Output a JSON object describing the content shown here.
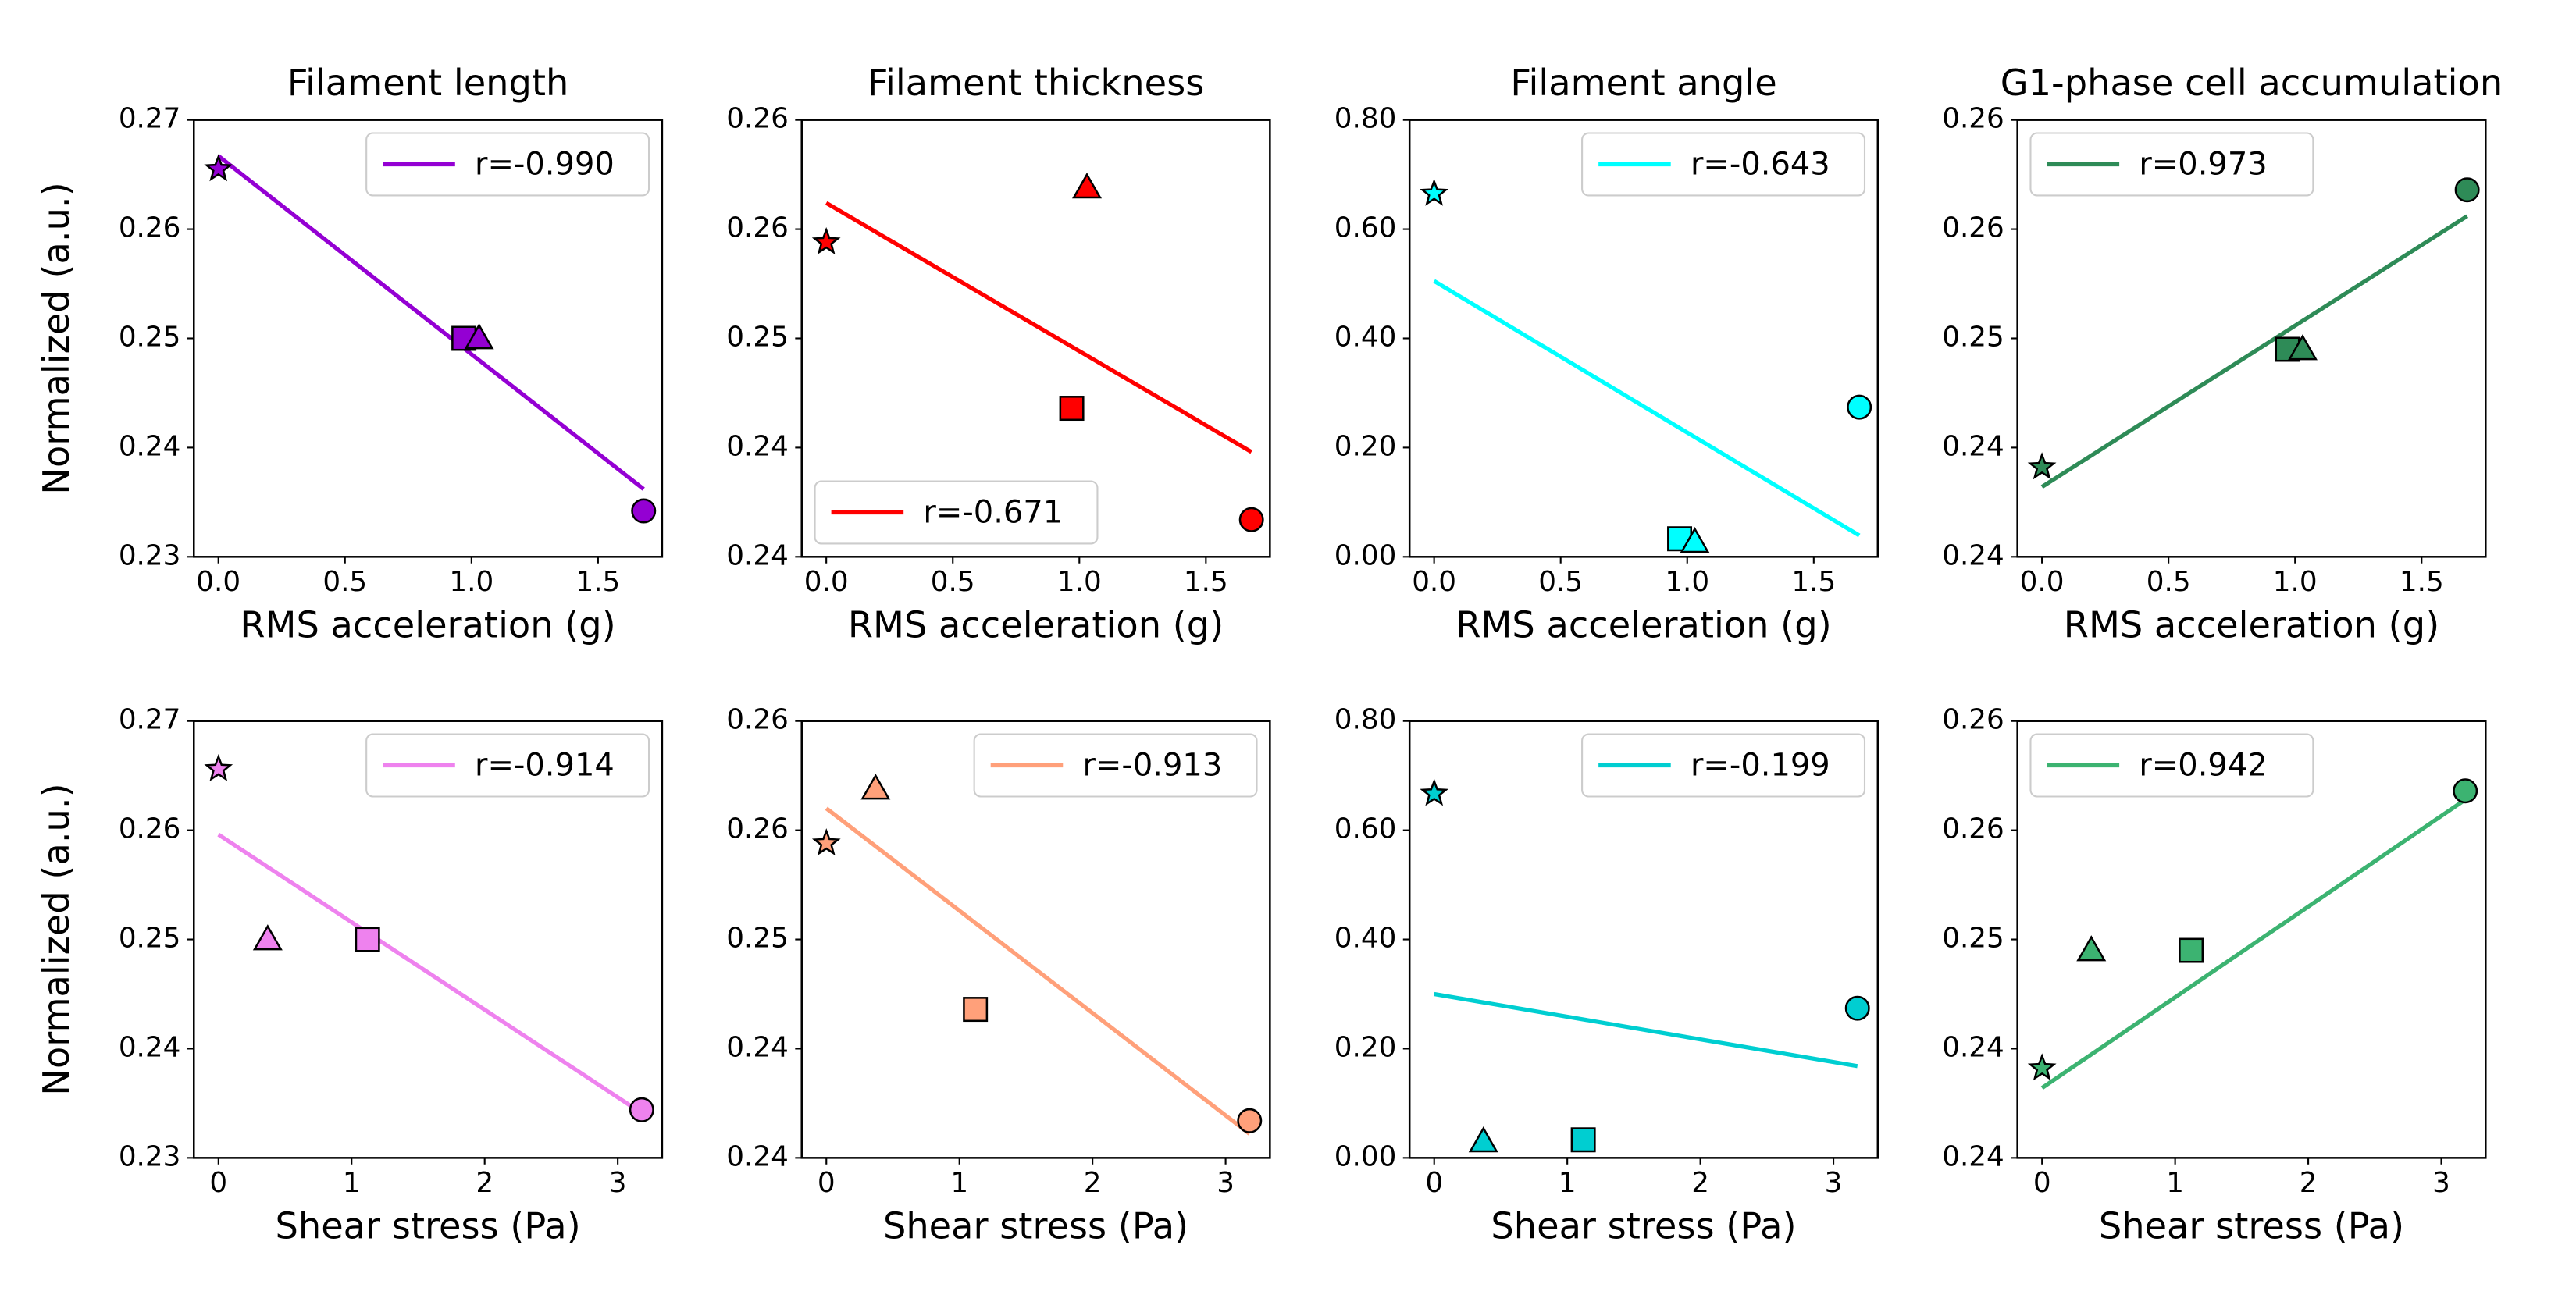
{
  "chart_data": [
    {
      "type": "scatter",
      "title": "Filament length",
      "xlabel": "RMS acceleration (g)",
      "ylabel": "Normalized (a.u.)",
      "color": "#9400d3",
      "x": [
        0,
        0.97,
        1.03,
        1.68
      ],
      "values": [
        0.2655,
        0.25,
        0.25,
        0.2342
      ],
      "markers": [
        "star",
        "square",
        "triangle",
        "circle"
      ],
      "fit": {
        "name": "r=-0.990",
        "x": [
          0,
          1.68
        ],
        "values": [
          0.2667,
          0.2362
        ]
      },
      "legend": "upper right",
      "xlim": [
        -0.097,
        1.753
      ],
      "ylim": [
        0.23,
        0.27
      ],
      "xticks": [
        {
          "value": 0,
          "label": "0.0"
        },
        0.5,
        {
          "value": 1,
          "label": "1.0"
        },
        1.5
      ],
      "yticks": [
        0.23,
        0.24,
        0.25,
        0.26,
        0.27
      ]
    },
    {
      "type": "scatter",
      "title": "Filament thickness",
      "xlabel": "RMS acceleration (g)",
      "color": "#ff0000",
      "x": [
        0,
        0.97,
        1.03,
        1.68
      ],
      "values": [
        0.2544,
        0.2468,
        0.2569,
        0.2417
      ],
      "markers": [
        "star",
        "square",
        "triangle",
        "circle"
      ],
      "fit": {
        "name": "r=-0.671",
        "x": [
          0,
          1.68
        ],
        "values": [
          0.2562,
          0.2448
        ]
      },
      "legend": "lower left",
      "xlim": [
        -0.097,
        1.753
      ],
      "ylim": [
        0.24,
        0.26
      ],
      "xticks": [
        {
          "value": 0,
          "label": "0.0"
        },
        0.5,
        {
          "value": 1,
          "label": "1.0"
        },
        1.5
      ],
      "yticks": [
        0.24,
        {
          "value": 0.245,
          "label": "0.24"
        },
        0.25,
        {
          "value": 0.255,
          "label": "0.26"
        },
        0.26
      ]
    },
    {
      "type": "scatter",
      "title": "Filament angle",
      "xlabel": "RMS acceleration (g)",
      "color": "#00ffff",
      "x": [
        0,
        0.97,
        1.03,
        1.68
      ],
      "values": [
        0.665,
        0.033,
        0.027,
        0.274
      ],
      "markers": [
        "star",
        "square",
        "triangle",
        "circle"
      ],
      "fit": {
        "name": "r=-0.643",
        "x": [
          0,
          1.68
        ],
        "values": [
          0.505,
          0.039
        ]
      },
      "legend": "upper right",
      "xlim": [
        -0.097,
        1.753
      ],
      "ylim": [
        0,
        0.8
      ],
      "xticks": [
        {
          "value": 0,
          "label": "0.0"
        },
        0.5,
        {
          "value": 1,
          "label": "1.0"
        },
        1.5
      ],
      "yticks": [
        {
          "value": 0,
          "label": "0.00"
        },
        {
          "value": 0.2,
          "label": "0.20"
        },
        {
          "value": 0.4,
          "label": "0.40"
        },
        {
          "value": 0.6,
          "label": "0.60"
        },
        {
          "value": 0.8,
          "label": "0.80"
        }
      ]
    },
    {
      "type": "scatter",
      "title": "G1-phase cell accumulation",
      "xlabel": "RMS acceleration (g)",
      "color": "#2e8b57",
      "x": [
        0,
        0.97,
        1.03,
        1.68
      ],
      "values": [
        0.2441,
        0.2495,
        0.2495,
        0.2568
      ],
      "markers": [
        "star",
        "square",
        "triangle",
        "circle"
      ],
      "fit": {
        "name": "r=0.973",
        "x": [
          0,
          1.68
        ],
        "values": [
          0.2432,
          0.2556
        ]
      },
      "legend": "upper left",
      "xlim": [
        -0.097,
        1.753
      ],
      "ylim": [
        0.24,
        0.26
      ],
      "xticks": [
        {
          "value": 0,
          "label": "0.0"
        },
        0.5,
        {
          "value": 1,
          "label": "1.0"
        },
        1.5
      ],
      "yticks": [
        0.24,
        {
          "value": 0.245,
          "label": "0.24"
        },
        0.25,
        {
          "value": 0.255,
          "label": "0.26"
        },
        0.26
      ]
    },
    {
      "type": "scatter",
      "xlabel": "Shear stress (Pa)",
      "ylabel": "Normalized (a.u.)",
      "color": "#ee82ee",
      "x": [
        0,
        1.12,
        0.37,
        3.18
      ],
      "values": [
        0.2656,
        0.25,
        0.25,
        0.2344
      ],
      "markers": [
        "star",
        "square",
        "triangle",
        "circle"
      ],
      "fit": {
        "name": "r=-0.914",
        "x": [
          0,
          3.18
        ],
        "values": [
          0.2596,
          0.2341
        ]
      },
      "legend": "upper right",
      "xlim": [
        -0.185,
        3.333
      ],
      "ylim": [
        0.23,
        0.27
      ],
      "xticks": [
        0,
        1,
        2,
        3
      ],
      "yticks": [
        0.23,
        0.24,
        0.25,
        0.26,
        0.27
      ]
    },
    {
      "type": "scatter",
      "xlabel": "Shear stress (Pa)",
      "color": "#ffa07a",
      "x": [
        0,
        1.12,
        0.37,
        3.18
      ],
      "values": [
        0.2544,
        0.2468,
        0.2569,
        0.2417
      ],
      "markers": [
        "star",
        "square",
        "triangle",
        "circle"
      ],
      "fit": {
        "name": "r=-0.913",
        "x": [
          0,
          3.18
        ],
        "values": [
          0.256,
          0.2411
        ]
      },
      "legend": "upper right",
      "xlim": [
        -0.185,
        3.333
      ],
      "ylim": [
        0.24,
        0.26
      ],
      "xticks": [
        0,
        1,
        2,
        3
      ],
      "yticks": [
        0.24,
        {
          "value": 0.245,
          "label": "0.24"
        },
        0.25,
        {
          "value": 0.255,
          "label": "0.26"
        },
        0.26
      ]
    },
    {
      "type": "scatter",
      "xlabel": "Shear stress (Pa)",
      "color": "#00ced1",
      "x": [
        0,
        1.12,
        0.37,
        3.18
      ],
      "values": [
        0.667,
        0.033,
        0.03,
        0.274
      ],
      "markers": [
        "star",
        "square",
        "triangle",
        "circle"
      ],
      "fit": {
        "name": "r=-0.199",
        "x": [
          0,
          3.18
        ],
        "values": [
          0.3,
          0.168
        ]
      },
      "legend": "upper right",
      "xlim": [
        -0.185,
        3.333
      ],
      "ylim": [
        0,
        0.8
      ],
      "xticks": [
        0,
        1,
        2,
        3
      ],
      "yticks": [
        {
          "value": 0,
          "label": "0.00"
        },
        {
          "value": 0.2,
          "label": "0.20"
        },
        {
          "value": 0.4,
          "label": "0.40"
        },
        {
          "value": 0.6,
          "label": "0.60"
        },
        {
          "value": 0.8,
          "label": "0.80"
        }
      ]
    },
    {
      "type": "scatter",
      "xlabel": "Shear stress (Pa)",
      "color": "#3cb371",
      "x": [
        0,
        1.12,
        0.37,
        3.18
      ],
      "values": [
        0.2441,
        0.2495,
        0.2495,
        0.2568
      ],
      "markers": [
        "star",
        "square",
        "triangle",
        "circle"
      ],
      "fit": {
        "name": "r=0.942",
        "x": [
          0,
          3.18
        ],
        "values": [
          0.2432,
          0.2564
        ]
      },
      "legend": "upper left",
      "xlim": [
        -0.185,
        3.333
      ],
      "ylim": [
        0.24,
        0.26
      ],
      "xticks": [
        0,
        1,
        2,
        3
      ],
      "yticks": [
        0.24,
        {
          "value": 0.245,
          "label": "0.24"
        },
        0.25,
        {
          "value": 0.255,
          "label": "0.26"
        },
        0.26
      ]
    }
  ]
}
